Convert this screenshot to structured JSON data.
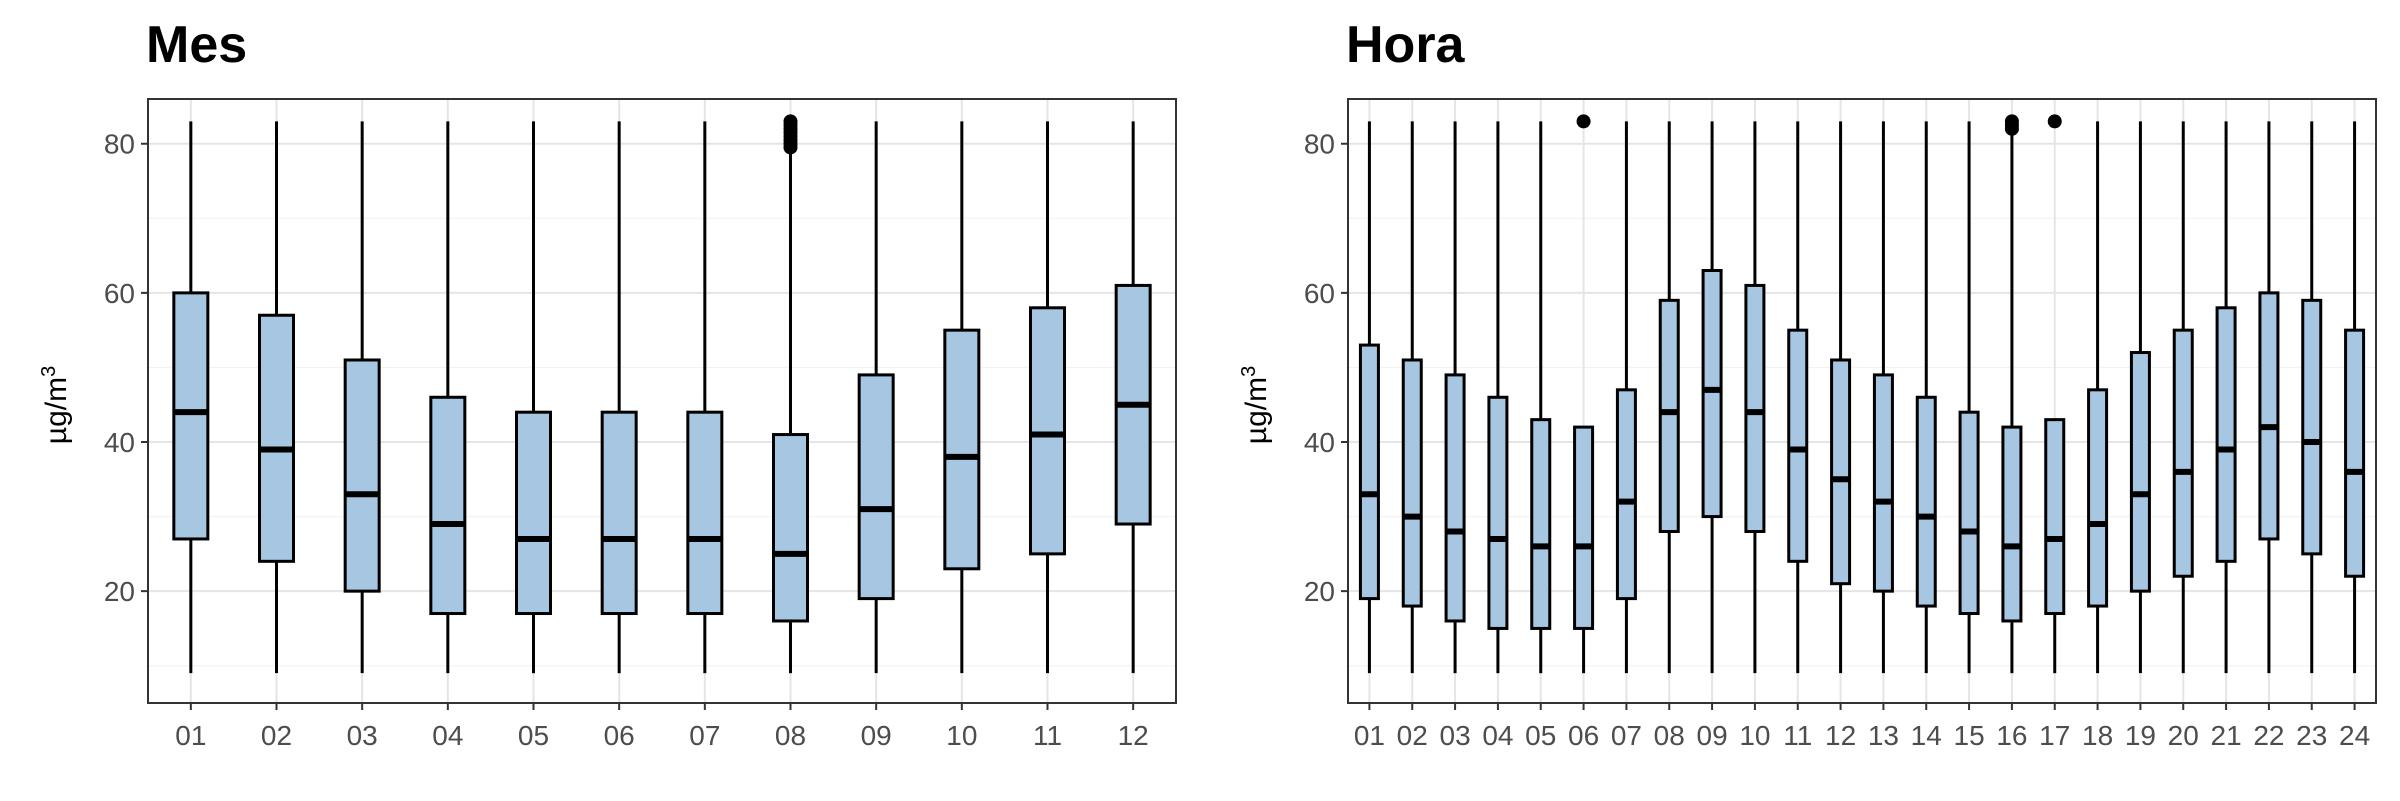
{
  "colors": {
    "box_fill": "#a6c6e1",
    "box_stroke": "#000000",
    "grid_major": "#e5e5e5",
    "grid_minor": "#f2f2f2",
    "panel_border": "#333333",
    "tick_text": "#4d4d4d"
  },
  "chart_data": [
    {
      "type": "boxplot",
      "title": "Mes",
      "ylabel": "µg/m",
      "ylabel_sup": "3",
      "ylim": [
        5,
        86
      ],
      "yticks": [
        20,
        40,
        60,
        80
      ],
      "grid": true,
      "categories": [
        "01",
        "02",
        "03",
        "04",
        "05",
        "06",
        "07",
        "08",
        "09",
        "10",
        "11",
        "12"
      ],
      "whisker_low": [
        9,
        9,
        9,
        9,
        9,
        9,
        9,
        9,
        9,
        9,
        9,
        9
      ],
      "q1": [
        27,
        24,
        20,
        17,
        17,
        17,
        17,
        16,
        19,
        23,
        25,
        29
      ],
      "median": [
        44,
        39,
        33,
        29,
        27,
        27,
        27,
        25,
        31,
        38,
        41,
        45
      ],
      "q3": [
        60,
        57,
        51,
        46,
        44,
        44,
        44,
        41,
        49,
        55,
        58,
        61
      ],
      "whisker_high": [
        83,
        83,
        83,
        83,
        83,
        83,
        83,
        79,
        83,
        83,
        83,
        83
      ],
      "outliers": [
        [],
        [],
        [],
        [],
        [],
        [],
        [],
        [
          79.5,
          80,
          80.5,
          81,
          81.5,
          82,
          82.5,
          83
        ],
        [],
        [],
        [],
        []
      ]
    },
    {
      "type": "boxplot",
      "title": "Hora",
      "ylabel": "µg/m",
      "ylabel_sup": "3",
      "ylim": [
        5,
        86
      ],
      "yticks": [
        20,
        40,
        60,
        80
      ],
      "grid": true,
      "categories": [
        "01",
        "02",
        "03",
        "04",
        "05",
        "06",
        "07",
        "08",
        "09",
        "10",
        "11",
        "12",
        "13",
        "14",
        "15",
        "16",
        "17",
        "18",
        "19",
        "20",
        "21",
        "22",
        "23",
        "24"
      ],
      "whisker_low": [
        9,
        9,
        9,
        9,
        9,
        9,
        9,
        9,
        9,
        9,
        9,
        9,
        9,
        9,
        9,
        9,
        9,
        9,
        9,
        9,
        9,
        9,
        9,
        9
      ],
      "q1": [
        19,
        18,
        16,
        15,
        15,
        15,
        19,
        28,
        30,
        28,
        24,
        21,
        20,
        18,
        17,
        16,
        17,
        18,
        20,
        22,
        24,
        27,
        25,
        22
      ],
      "median": [
        33,
        30,
        28,
        27,
        26,
        26,
        32,
        44,
        47,
        44,
        39,
        35,
        32,
        30,
        28,
        26,
        27,
        29,
        33,
        36,
        39,
        42,
        40,
        36
      ],
      "q3": [
        53,
        51,
        49,
        46,
        43,
        42,
        47,
        59,
        63,
        61,
        55,
        51,
        49,
        46,
        44,
        42,
        43,
        47,
        52,
        55,
        58,
        60,
        59,
        55
      ],
      "whisker_high": [
        83,
        83,
        83,
        83,
        83,
        42,
        83,
        83,
        83,
        83,
        83,
        83,
        83,
        83,
        83,
        82,
        43,
        83,
        83,
        83,
        83,
        83,
        83,
        83
      ],
      "outliers": [
        [],
        [],
        [],
        [],
        [],
        [
          83
        ],
        [],
        [],
        [],
        [],
        [],
        [],
        [],
        [],
        [],
        [
          82,
          82.5,
          83
        ],
        [
          83
        ],
        [],
        [],
        [],
        [],
        [],
        [],
        []
      ]
    }
  ]
}
